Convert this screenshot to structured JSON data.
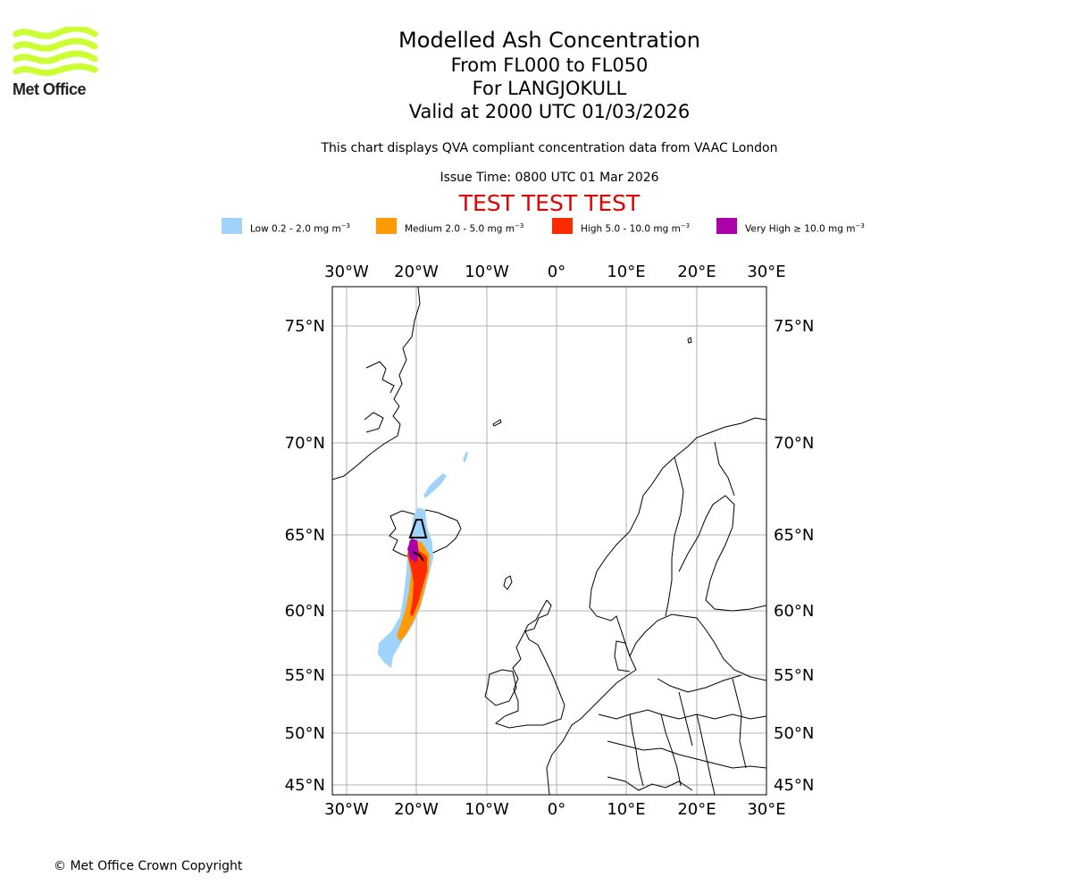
{
  "logo": {
    "wordmark": "Met Office",
    "accent": "#ccff33"
  },
  "title": {
    "line1": "Modelled Ash Concentration",
    "line2": "From FL000 to FL050",
    "line3": "For LANGJOKULL",
    "line4": "Valid at 2000 UTC 01/03/2026"
  },
  "subtitle": "This chart displays QVA compliant concentration data from VAAC London",
  "issue_time": "Issue Time: 0800 UTC 01 Mar 2026",
  "test_banner": "TEST TEST TEST",
  "legend": [
    {
      "label": "Low 0.2 - 2.0 mg m",
      "unit_exp": "−3",
      "color": "#9fd3fb"
    },
    {
      "label": "Medium 2.0 - 5.0 mg m",
      "unit_exp": "−3",
      "color": "#ff9a00"
    },
    {
      "label": "High 5.0 - 10.0 mg m",
      "unit_exp": "−3",
      "color": "#ff2a00"
    },
    {
      "label": "Very High ≥ 10.0 mg m",
      "unit_exp": "−3",
      "color": "#aa00aa"
    }
  ],
  "map": {
    "lon_ticks": [
      "30°W",
      "20°W",
      "10°W",
      "0°",
      "10°E",
      "20°E",
      "30°E"
    ],
    "lat_ticks": [
      "75°N",
      "70°N",
      "65°N",
      "60°N",
      "55°N",
      "50°N",
      "45°N"
    ],
    "extent_lon": [
      -32,
      30
    ],
    "extent_lat": [
      44,
      76.5
    ],
    "volcano": "LANGJOKULL"
  },
  "copyright": "© Met Office Crown Copyright"
}
